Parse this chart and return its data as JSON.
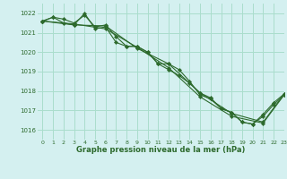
{
  "title": "Graphe pression niveau de la mer (hPa)",
  "background_color": "#d4f0f0",
  "grid_color": "#aaddcc",
  "line_color": "#2d6a2d",
  "xlim": [
    -0.5,
    23
  ],
  "ylim": [
    1015.5,
    1022.5
  ],
  "yticks": [
    1016,
    1017,
    1018,
    1019,
    1020,
    1021,
    1022
  ],
  "xticks": [
    0,
    1,
    2,
    3,
    4,
    5,
    6,
    7,
    8,
    9,
    10,
    11,
    12,
    13,
    14,
    15,
    16,
    17,
    18,
    19,
    20,
    21,
    22,
    23
  ],
  "series": [
    {
      "x": [
        0,
        1,
        2,
        3,
        4,
        5,
        6,
        7,
        8,
        9,
        10,
        11,
        12,
        13,
        14,
        15,
        16,
        17,
        18,
        19,
        20,
        21,
        22,
        23
      ],
      "y": [
        1021.6,
        1021.8,
        1021.7,
        1021.5,
        1021.9,
        1021.3,
        1021.4,
        1020.8,
        1020.3,
        1020.3,
        1020.0,
        1019.4,
        1019.4,
        1019.1,
        1018.5,
        1017.8,
        1017.6,
        1017.1,
        1016.9,
        1016.4,
        1016.3,
        1016.7,
        1017.3,
        1017.8
      ]
    },
    {
      "x": [
        0,
        1,
        2,
        3,
        4,
        5,
        6,
        7,
        8,
        9,
        10,
        11,
        12,
        13,
        14,
        15,
        16,
        17,
        18,
        19,
        20,
        21,
        22,
        23
      ],
      "y": [
        1021.6,
        1021.8,
        1021.5,
        1021.4,
        1022.0,
        1021.2,
        1021.3,
        1020.5,
        1020.3,
        1020.3,
        1020.0,
        1019.4,
        1019.1,
        1018.8,
        1018.4,
        1017.9,
        1017.65,
        1017.1,
        1016.9,
        1016.4,
        1016.3,
        1016.8,
        1017.4,
        1017.85
      ]
    },
    {
      "x": [
        0,
        3,
        6,
        9,
        12,
        15,
        18,
        21,
        23
      ],
      "y": [
        1021.6,
        1021.4,
        1021.35,
        1020.2,
        1019.4,
        1017.9,
        1016.85,
        1016.4,
        1017.85
      ]
    },
    {
      "x": [
        0,
        3,
        6,
        9,
        12,
        15,
        18,
        21,
        23
      ],
      "y": [
        1021.6,
        1021.45,
        1021.2,
        1020.25,
        1019.2,
        1017.7,
        1016.7,
        1016.35,
        1017.8
      ]
    }
  ]
}
